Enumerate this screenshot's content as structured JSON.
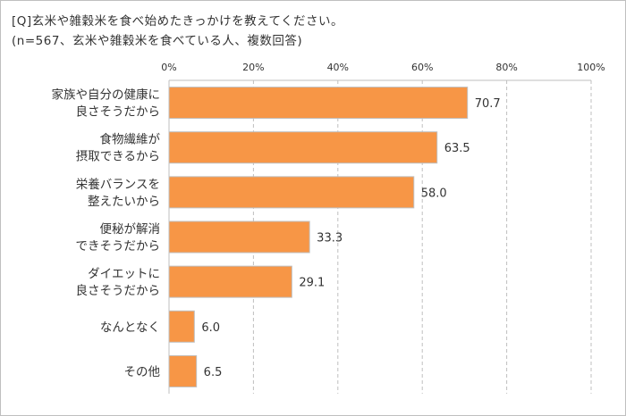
{
  "chart_data": {
    "type": "bar",
    "orientation": "horizontal",
    "title": "[Q]玄米や雑穀米を食べ始めたきっかけを教えてください。",
    "subtitle": "(n=567、玄米や雑穀米を食べている人、複数回答)",
    "categories": [
      "家族や自分の健康に\n良さそうだから",
      "食物繊維が\n摂取できるから",
      "栄養バランスを\n整えたいから",
      "便秘が解消\nできそうだから",
      "ダイエットに\n良さそうだから",
      "なんとなく",
      "その他"
    ],
    "values": [
      70.7,
      63.5,
      58.0,
      33.3,
      29.1,
      6.0,
      6.5
    ],
    "data_labels": [
      "70.7",
      "63.5",
      "58.0",
      "33.3",
      "29.1",
      "6.0",
      "6.5"
    ],
    "xlim": [
      0,
      100
    ],
    "x_ticks": [
      "0%",
      "20%",
      "40%",
      "60%",
      "80%",
      "100%"
    ],
    "xlabel": "",
    "ylabel": "",
    "grid": "vertical dashed",
    "legend": "none",
    "colors": {
      "bar": "#F79646",
      "bar_border": "#BFBFBF",
      "grid": "#BFBFBF"
    }
  }
}
